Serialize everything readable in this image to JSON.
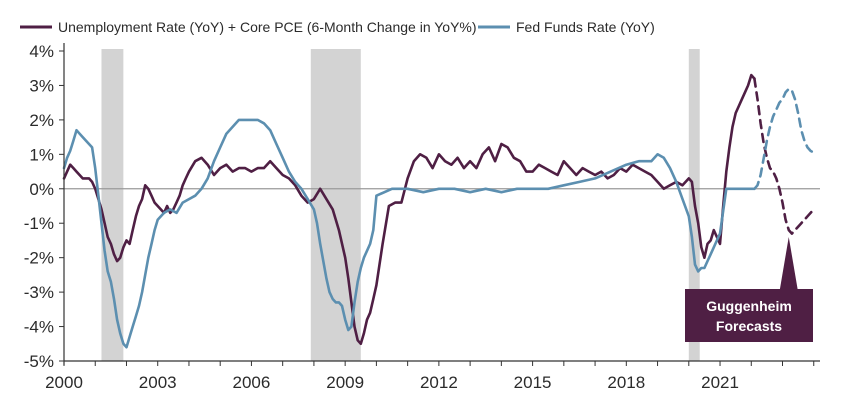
{
  "chart_data": {
    "type": "line",
    "title": "",
    "xlabel": "",
    "ylabel": "",
    "xlim": [
      2000,
      2024.2
    ],
    "ylim": [
      -5,
      4
    ],
    "x_ticks": [
      2000,
      2003,
      2006,
      2009,
      2012,
      2015,
      2018,
      2021
    ],
    "x_tick_labels": [
      "2000",
      "2003",
      "2006",
      "2009",
      "2012",
      "2015",
      "2018",
      "2021"
    ],
    "y_ticks": [
      4,
      3,
      2,
      1,
      0,
      -1,
      -2,
      -3,
      -4,
      -5
    ],
    "y_tick_labels": [
      "4%",
      "3%",
      "2%",
      "1%",
      "0%",
      "-1%",
      "-2%",
      "-3%",
      "-4%",
      "-5%"
    ],
    "grid": false,
    "zero_line": true,
    "legend_position": "top-left",
    "colors": {
      "unemployment_pce": "#4f1f44",
      "fed_funds": "#5c8fb0",
      "recession": "#d3d3d3",
      "zero_line": "#9a9a9a",
      "callout_bg": "#4f1f44",
      "axis": "#333333"
    },
    "recessions": [
      {
        "start": 2001.2,
        "end": 2001.9
      },
      {
        "start": 2007.9,
        "end": 2009.5
      },
      {
        "start": 2020.0,
        "end": 2020.35
      }
    ],
    "series": [
      {
        "name": "Unemployment Rate (YoY) + Core PCE (6-Month Change in YoY%)",
        "key": "unemployment_pce",
        "style": "solid",
        "x": [
          2000.0,
          2000.1,
          2000.2,
          2000.3,
          2000.4,
          2000.5,
          2000.6,
          2000.7,
          2000.8,
          2000.9,
          2001.0,
          2001.1,
          2001.2,
          2001.3,
          2001.4,
          2001.5,
          2001.6,
          2001.7,
          2001.8,
          2001.9,
          2002.0,
          2002.1,
          2002.2,
          2002.3,
          2002.4,
          2002.5,
          2002.6,
          2002.7,
          2002.8,
          2002.9,
          2003.0,
          2003.1,
          2003.2,
          2003.3,
          2003.4,
          2003.5,
          2003.6,
          2003.7,
          2003.8,
          2003.9,
          2004.0,
          2004.2,
          2004.4,
          2004.6,
          2004.8,
          2005.0,
          2005.2,
          2005.4,
          2005.6,
          2005.8,
          2006.0,
          2006.2,
          2006.4,
          2006.6,
          2006.8,
          2007.0,
          2007.2,
          2007.4,
          2007.6,
          2007.8,
          2008.0,
          2008.2,
          2008.4,
          2008.6,
          2008.8,
          2009.0,
          2009.1,
          2009.2,
          2009.3,
          2009.4,
          2009.5,
          2009.6,
          2009.7,
          2009.8,
          2009.9,
          2010.0,
          2010.2,
          2010.4,
          2010.6,
          2010.8,
          2011.0,
          2011.2,
          2011.4,
          2011.6,
          2011.8,
          2012.0,
          2012.2,
          2012.4,
          2012.6,
          2012.8,
          2013.0,
          2013.2,
          2013.4,
          2013.6,
          2013.8,
          2014.0,
          2014.2,
          2014.4,
          2014.6,
          2014.8,
          2015.0,
          2015.2,
          2015.4,
          2015.6,
          2015.8,
          2016.0,
          2016.2,
          2016.4,
          2016.6,
          2016.8,
          2017.0,
          2017.2,
          2017.4,
          2017.6,
          2017.8,
          2018.0,
          2018.2,
          2018.4,
          2018.6,
          2018.8,
          2019.0,
          2019.2,
          2019.4,
          2019.6,
          2019.8,
          2020.0,
          2020.1,
          2020.2,
          2020.3,
          2020.4,
          2020.5,
          2020.6,
          2020.7,
          2020.8,
          2020.9,
          2021.0,
          2021.1,
          2021.2,
          2021.3,
          2021.4,
          2021.5,
          2021.6,
          2021.7,
          2021.8,
          2021.9,
          2022.0,
          2022.1
        ],
        "y": [
          0.3,
          0.5,
          0.7,
          0.6,
          0.5,
          0.4,
          0.3,
          0.3,
          0.3,
          0.2,
          0.0,
          -0.3,
          -0.6,
          -1.0,
          -1.4,
          -1.6,
          -1.9,
          -2.1,
          -2.0,
          -1.7,
          -1.5,
          -1.6,
          -1.2,
          -0.8,
          -0.5,
          -0.3,
          0.1,
          0.0,
          -0.2,
          -0.4,
          -0.5,
          -0.6,
          -0.7,
          -0.5,
          -0.7,
          -0.6,
          -0.4,
          -0.2,
          0.1,
          0.3,
          0.5,
          0.8,
          0.9,
          0.7,
          0.4,
          0.6,
          0.7,
          0.5,
          0.6,
          0.6,
          0.5,
          0.6,
          0.6,
          0.8,
          0.6,
          0.4,
          0.3,
          0.1,
          -0.2,
          -0.4,
          -0.3,
          0.0,
          -0.3,
          -0.6,
          -1.2,
          -2.0,
          -2.6,
          -3.3,
          -4.0,
          -4.4,
          -4.5,
          -4.2,
          -3.8,
          -3.6,
          -3.2,
          -2.8,
          -1.6,
          -0.5,
          -0.4,
          -0.4,
          0.3,
          0.8,
          1.0,
          0.9,
          0.6,
          1.0,
          0.8,
          0.7,
          0.9,
          0.6,
          0.8,
          0.6,
          1.0,
          1.2,
          0.8,
          1.3,
          1.2,
          0.9,
          0.8,
          0.5,
          0.5,
          0.7,
          0.6,
          0.5,
          0.4,
          0.8,
          0.6,
          0.4,
          0.6,
          0.5,
          0.4,
          0.5,
          0.3,
          0.4,
          0.6,
          0.5,
          0.7,
          0.6,
          0.5,
          0.4,
          0.2,
          0.0,
          0.1,
          0.2,
          0.1,
          0.3,
          0.2,
          -0.5,
          -1.0,
          -1.7,
          -2.0,
          -1.6,
          -1.5,
          -1.2,
          -1.4,
          -1.6,
          -0.5,
          0.5,
          1.2,
          1.8,
          2.2,
          2.4,
          2.6,
          2.8,
          3.0,
          3.3,
          3.2
        ]
      },
      {
        "name": "Unemployment Rate + Core PCE (Forecast)",
        "key": "unemployment_pce",
        "style": "dashed",
        "x": [
          2022.1,
          2022.2,
          2022.3,
          2022.4,
          2022.5,
          2022.6,
          2022.7,
          2022.8,
          2022.9,
          2023.0,
          2023.1,
          2023.2,
          2023.3,
          2023.4,
          2023.5,
          2023.6,
          2023.7,
          2023.8,
          2023.9,
          2024.0
        ],
        "y": [
          3.2,
          2.6,
          1.9,
          1.3,
          0.9,
          0.6,
          0.5,
          0.3,
          0.0,
          -0.4,
          -0.9,
          -1.2,
          -1.3,
          -1.2,
          -1.1,
          -1.0,
          -0.9,
          -0.8,
          -0.7,
          -0.6
        ]
      },
      {
        "name": "Fed Funds Rate (YoY)",
        "key": "fed_funds",
        "style": "solid",
        "x": [
          2000.0,
          2000.1,
          2000.2,
          2000.3,
          2000.4,
          2000.5,
          2000.6,
          2000.7,
          2000.8,
          2000.9,
          2001.0,
          2001.1,
          2001.2,
          2001.3,
          2001.4,
          2001.5,
          2001.6,
          2001.7,
          2001.8,
          2001.9,
          2002.0,
          2002.1,
          2002.2,
          2002.3,
          2002.4,
          2002.5,
          2002.6,
          2002.7,
          2002.8,
          2002.9,
          2003.0,
          2003.2,
          2003.4,
          2003.6,
          2003.8,
          2004.0,
          2004.2,
          2004.4,
          2004.6,
          2004.8,
          2005.0,
          2005.2,
          2005.4,
          2005.6,
          2005.8,
          2006.0,
          2006.2,
          2006.4,
          2006.6,
          2006.8,
          2007.0,
          2007.2,
          2007.4,
          2007.6,
          2007.8,
          2008.0,
          2008.1,
          2008.2,
          2008.3,
          2008.4,
          2008.5,
          2008.6,
          2008.7,
          2008.8,
          2008.9,
          2009.0,
          2009.1,
          2009.2,
          2009.3,
          2009.4,
          2009.5,
          2009.6,
          2009.7,
          2009.8,
          2009.9,
          2010.0,
          2010.5,
          2011.0,
          2011.5,
          2012.0,
          2012.5,
          2013.0,
          2013.5,
          2014.0,
          2014.5,
          2015.0,
          2015.5,
          2016.0,
          2016.5,
          2017.0,
          2017.5,
          2018.0,
          2018.4,
          2018.8,
          2019.0,
          2019.2,
          2019.4,
          2019.6,
          2019.8,
          2020.0,
          2020.1,
          2020.2,
          2020.3,
          2020.4,
          2020.5,
          2020.6,
          2020.7,
          2020.8,
          2020.9,
          2021.0,
          2021.2,
          2021.4,
          2021.6,
          2021.8,
          2022.0,
          2022.1
        ],
        "y": [
          0.6,
          0.9,
          1.1,
          1.4,
          1.7,
          1.6,
          1.5,
          1.4,
          1.3,
          1.2,
          0.6,
          -0.2,
          -1.0,
          -1.8,
          -2.4,
          -2.7,
          -3.2,
          -3.8,
          -4.2,
          -4.5,
          -4.6,
          -4.3,
          -4.0,
          -3.7,
          -3.4,
          -3.0,
          -2.5,
          -2.0,
          -1.6,
          -1.2,
          -0.9,
          -0.7,
          -0.6,
          -0.7,
          -0.4,
          -0.3,
          -0.2,
          0.0,
          0.3,
          0.8,
          1.2,
          1.6,
          1.8,
          2.0,
          2.0,
          2.0,
          2.0,
          1.9,
          1.7,
          1.3,
          0.9,
          0.5,
          0.2,
          0.0,
          -0.3,
          -0.6,
          -1.0,
          -1.6,
          -2.1,
          -2.6,
          -3.0,
          -3.2,
          -3.3,
          -3.3,
          -3.4,
          -3.8,
          -4.1,
          -4.0,
          -3.3,
          -2.7,
          -2.3,
          -2.0,
          -1.8,
          -1.6,
          -1.2,
          -0.2,
          0.0,
          0.0,
          -0.1,
          0.0,
          0.0,
          -0.1,
          0.0,
          -0.1,
          0.0,
          0.0,
          0.0,
          0.1,
          0.2,
          0.3,
          0.5,
          0.7,
          0.8,
          0.8,
          1.0,
          0.9,
          0.6,
          0.2,
          -0.3,
          -0.8,
          -1.4,
          -2.2,
          -2.4,
          -2.3,
          -2.3,
          -2.1,
          -1.9,
          -1.7,
          -1.5,
          -1.3,
          0.0,
          0.0,
          0.0,
          0.0,
          0.0,
          0.0
        ]
      },
      {
        "name": "Fed Funds Rate (Forecast)",
        "key": "fed_funds",
        "style": "dashed",
        "x": [
          2022.1,
          2022.2,
          2022.3,
          2022.4,
          2022.5,
          2022.6,
          2022.7,
          2022.8,
          2022.9,
          2023.0,
          2023.1,
          2023.2,
          2023.3,
          2023.4,
          2023.5,
          2023.6,
          2023.7,
          2023.8,
          2023.9,
          2024.0
        ],
        "y": [
          0.0,
          0.1,
          0.4,
          0.9,
          1.4,
          1.8,
          2.1,
          2.3,
          2.5,
          2.6,
          2.8,
          2.9,
          2.85,
          2.6,
          2.2,
          1.7,
          1.4,
          1.2,
          1.1,
          1.05
        ]
      }
    ],
    "legend": [
      {
        "label": "Unemployment Rate (YoY) + Core PCE (6-Month Change in YoY%)",
        "key": "unemployment_pce"
      },
      {
        "label": "Fed Funds Rate (YoY)",
        "key": "fed_funds"
      }
    ],
    "annotations": [
      {
        "text_lines": [
          "Guggenheim",
          "Forecasts"
        ],
        "points_to_x": 2023.2
      }
    ]
  }
}
